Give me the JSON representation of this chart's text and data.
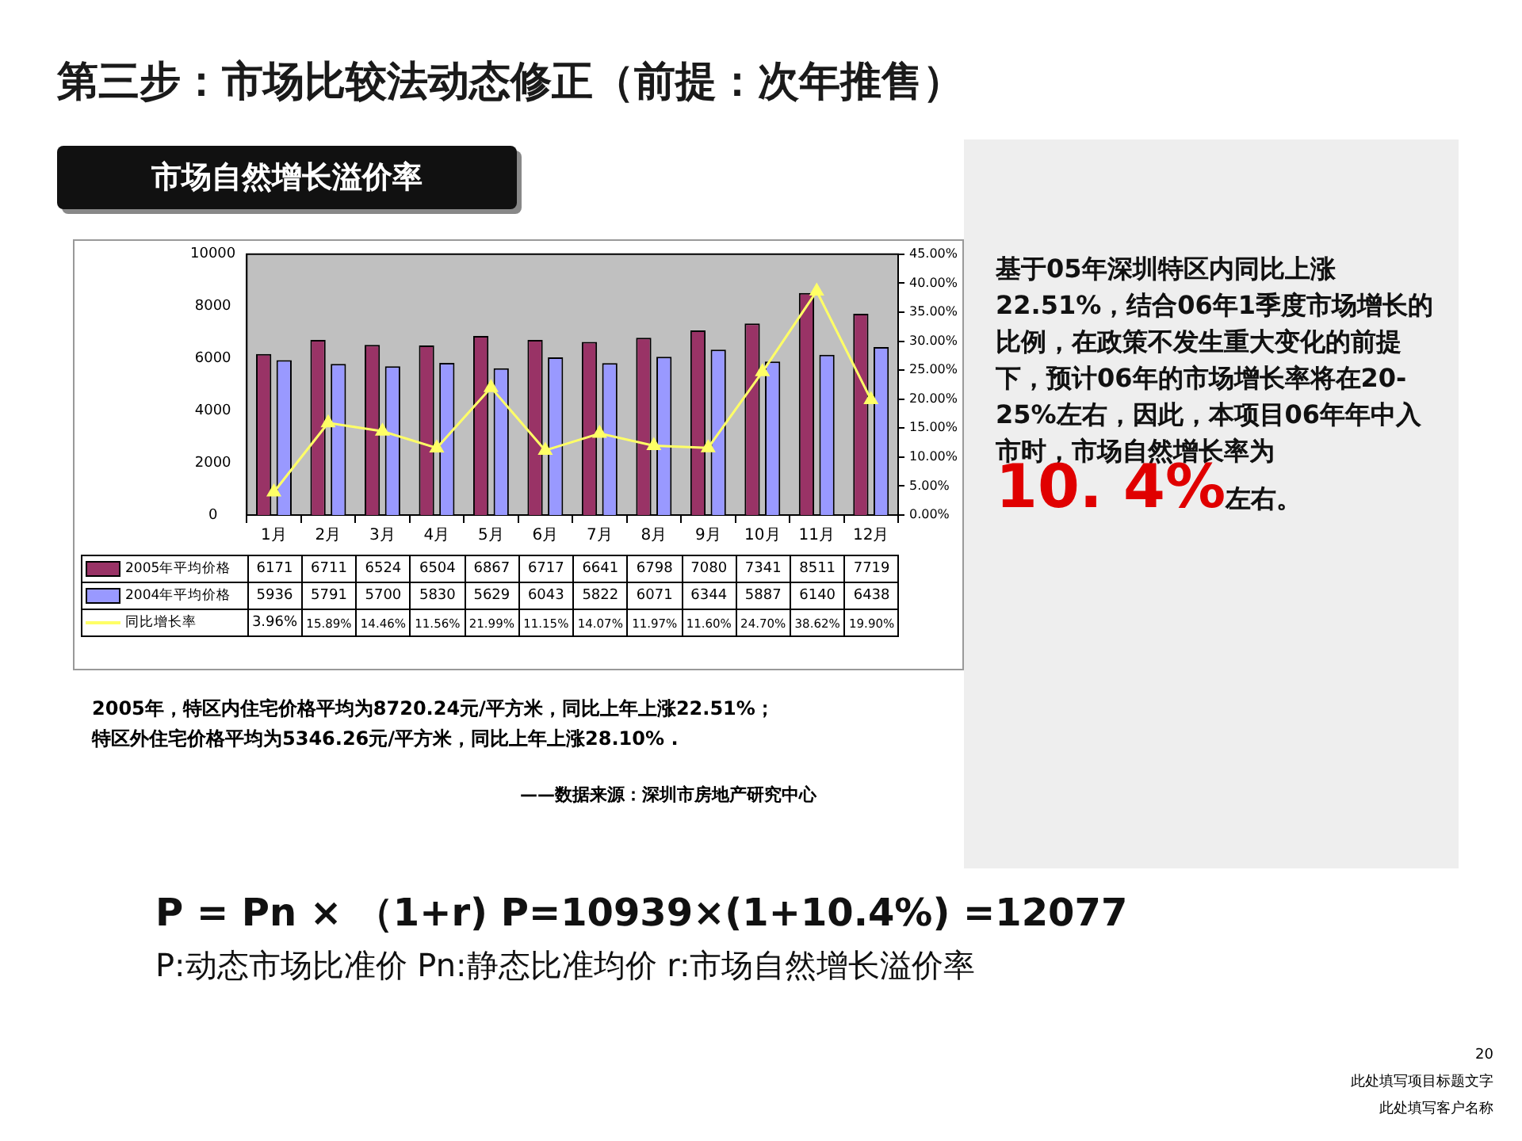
{
  "chart_data": {
    "type": "bar",
    "title": "第三步：市场比较法动态修正（前提：次年推售）",
    "subtitle": "市场自然增长溢价率",
    "categories": [
      "1月",
      "2月",
      "3月",
      "4月",
      "5月",
      "6月",
      "7月",
      "8月",
      "9月",
      "10月",
      "11月",
      "12月"
    ],
    "series": [
      {
        "name": "2005年平均价格",
        "color": "#993366",
        "values": [
          6171,
          6711,
          6524,
          6504,
          6867,
          6717,
          6641,
          6798,
          7080,
          7341,
          8511,
          7719
        ],
        "value_labels": [
          "6171",
          "6711",
          "6524",
          "6504",
          "6867",
          "6717",
          "6641",
          "6798",
          "7080",
          "7341",
          "8511",
          "7719"
        ]
      },
      {
        "name": "2004年平均价格",
        "color": "#9999ff",
        "values": [
          5936,
          5791,
          5700,
          5830,
          5629,
          6043,
          5822,
          6071,
          6344,
          5887,
          6140,
          6438
        ],
        "value_labels": [
          "5936",
          "5791",
          "5700",
          "5830",
          "5629",
          "6043",
          "5822",
          "6071",
          "6344",
          "5887",
          "6140",
          "6438"
        ]
      },
      {
        "name": "同比增长率",
        "type": "line",
        "axis": "y2",
        "color": "#ffff66",
        "marker": "triangle",
        "values": [
          3.96,
          15.89,
          14.46,
          11.56,
          21.99,
          11.15,
          14.07,
          11.97,
          11.6,
          24.7,
          38.62,
          19.9
        ],
        "value_labels": [
          "3.96%",
          "15.89%",
          "14.46%",
          "11.56%",
          "21.99%",
          "11.15%",
          "14.07%",
          "11.97%",
          "11.60%",
          "24.70%",
          "38.62%",
          "19.90%"
        ]
      }
    ],
    "ylim": [
      0,
      10000
    ],
    "yticks": [
      0,
      2000,
      4000,
      6000,
      8000,
      10000
    ],
    "y2lim": [
      0,
      45
    ],
    "y2ticks": [
      {
        "value": 0,
        "label": "0.00%"
      },
      {
        "value": 5,
        "label": "5.00%"
      },
      {
        "value": 10,
        "label": "10.00%"
      },
      {
        "value": 15,
        "label": "15.00%"
      },
      {
        "value": 20,
        "label": "20.00%"
      },
      {
        "value": 25,
        "label": "25.00%"
      },
      {
        "value": 30,
        "label": "30.00%"
      },
      {
        "value": 35,
        "label": "35.00%"
      },
      {
        "value": 40,
        "label": "40.00%"
      },
      {
        "value": 45,
        "label": "45.00%"
      }
    ],
    "legend": "bottom",
    "annotations": [
      "基于05年深圳特区内同比上涨22.51%，结合06年1季度市场增长的比例，在政策不发生重大变化的前提下，预计06年的市场增长率将在20-25%左右，因此，本项目06年年中入市时，市场自然增长率为",
      "10. 4%",
      "左右。",
      "2005年，特区内住宅价格平均为8720.24元/平方米，同比上年上涨22.51%；",
      "特区外住宅价格平均为5346.26元/平方米，同比上年上涨28.10% .",
      "——数据来源：深圳市房地产研究中心",
      "P = Pn × （1+r) P=10939×(1+10.4%) =12077",
      "P:动态市场比准价 Pn:静态比准均价 r:市场自然增长溢价率",
      "20",
      "此处填写项目标题文字",
      "此处填写客户名称"
    ]
  }
}
